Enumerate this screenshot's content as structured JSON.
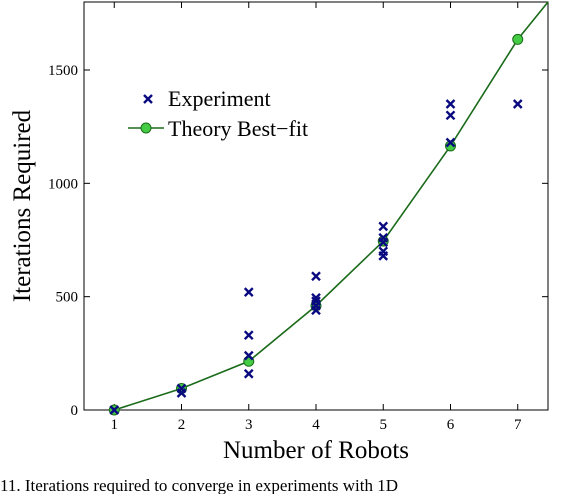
{
  "chart_data": {
    "type": "scatter",
    "title": "",
    "xlabel": "Number of Robots",
    "ylabel": "Iterations Required",
    "xlim": [
      0.55,
      7.45
    ],
    "ylim": [
      0,
      1800
    ],
    "xticks": [
      1,
      2,
      3,
      4,
      5,
      6,
      7
    ],
    "yticks": [
      0,
      500,
      1000,
      1500
    ],
    "grid": false,
    "legend_position": "upper-left",
    "series": [
      {
        "name": "Experiment",
        "marker": "x",
        "color": "#0a0a80",
        "points": [
          [
            1,
            0
          ],
          [
            2,
            75
          ],
          [
            2,
            95
          ],
          [
            3,
            160
          ],
          [
            3,
            240
          ],
          [
            3,
            330
          ],
          [
            3,
            520
          ],
          [
            4,
            440
          ],
          [
            4,
            460
          ],
          [
            4,
            480
          ],
          [
            4,
            495
          ],
          [
            4,
            590
          ],
          [
            5,
            680
          ],
          [
            5,
            700
          ],
          [
            5,
            740
          ],
          [
            5,
            760
          ],
          [
            5,
            810
          ],
          [
            6,
            1180
          ],
          [
            6,
            1300
          ],
          [
            6,
            1350
          ],
          [
            7,
            1350
          ]
        ]
      },
      {
        "name": "Theory Best−fit",
        "marker": "circle-line",
        "color": "#1a6b1a",
        "marker_fill": "#44cc44",
        "x": [
          1,
          2,
          3,
          4,
          5,
          6,
          7
        ],
        "y": [
          0,
          95,
          215,
          460,
          745,
          1165,
          1635
        ],
        "extends_to": [
          7.45,
          1830
        ]
      }
    ]
  },
  "caption": "11.    Iterations required to converge in experiments with 1D"
}
